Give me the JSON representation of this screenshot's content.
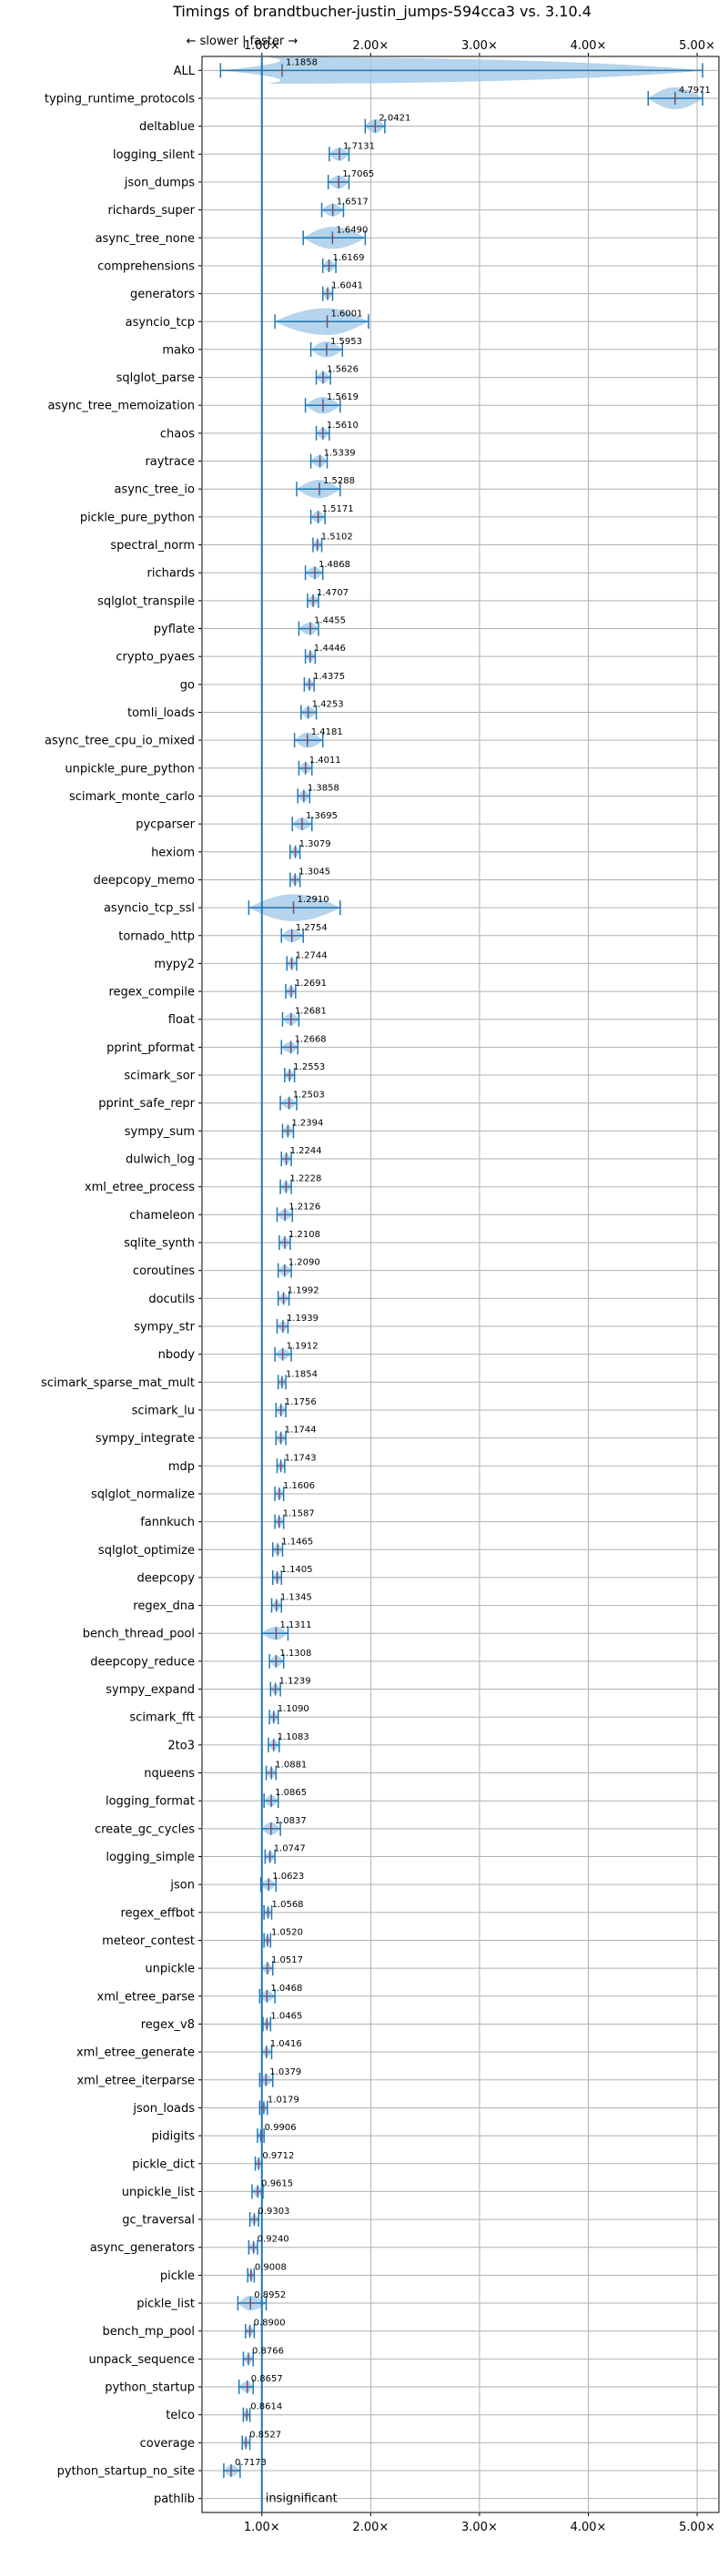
{
  "chart_data": {
    "type": "violin",
    "title": "Timings of brandtbucher-justin_jumps-594cca3 vs. 3.10.4",
    "direction_hint": "← slower | faster →",
    "xticks": [
      "1.00×",
      "2.00×",
      "3.00×",
      "4.00×",
      "5.00×"
    ],
    "xtick_values": [
      1,
      2,
      3,
      4,
      5
    ],
    "xlim": [
      0.45,
      5.2
    ],
    "reference_line": 1.0,
    "grid": true,
    "colors": {
      "violin": "#9ec5e4",
      "accent": "#1f77b4",
      "mean_marker": "#d62728"
    },
    "benchmarks": [
      {
        "name": "ALL",
        "value": 1.1858,
        "label": "1.1858",
        "min": 0.62,
        "max": 5.05,
        "spread": 0.35
      },
      {
        "name": "typing_runtime_protocols",
        "value": 4.7971,
        "label": "4.7971",
        "min": 4.55,
        "max": 5.05,
        "spread": 0.2
      },
      {
        "name": "deltablue",
        "value": 2.0421,
        "label": "2.0421",
        "min": 1.95,
        "max": 2.13,
        "spread": 0.09
      },
      {
        "name": "logging_silent",
        "value": 1.7131,
        "label": "1.7131",
        "min": 1.62,
        "max": 1.8,
        "spread": 0.08
      },
      {
        "name": "json_dumps",
        "value": 1.7065,
        "label": "1.7065",
        "min": 1.61,
        "max": 1.8,
        "spread": 0.08
      },
      {
        "name": "richards_super",
        "value": 1.6517,
        "label": "1.6517",
        "min": 1.55,
        "max": 1.75,
        "spread": 0.07
      },
      {
        "name": "async_tree_none",
        "value": 1.649,
        "label": "1.6490",
        "min": 1.38,
        "max": 1.95,
        "spread": 0.2
      },
      {
        "name": "comprehensions",
        "value": 1.6169,
        "label": "1.6169",
        "min": 1.56,
        "max": 1.68,
        "spread": 0.06
      },
      {
        "name": "generators",
        "value": 1.6041,
        "label": "1.6041",
        "min": 1.56,
        "max": 1.65,
        "spread": 0.05
      },
      {
        "name": "asyncio_tcp",
        "value": 1.6001,
        "label": "1.6001",
        "min": 1.12,
        "max": 1.98,
        "spread": 0.3
      },
      {
        "name": "mako",
        "value": 1.5953,
        "label": "1.5953",
        "min": 1.45,
        "max": 1.74,
        "spread": 0.12
      },
      {
        "name": "sqlglot_parse",
        "value": 1.5626,
        "label": "1.5626",
        "min": 1.5,
        "max": 1.63,
        "spread": 0.06
      },
      {
        "name": "async_tree_memoization",
        "value": 1.5619,
        "label": "1.5619",
        "min": 1.4,
        "max": 1.72,
        "spread": 0.13
      },
      {
        "name": "chaos",
        "value": 1.561,
        "label": "1.5610",
        "min": 1.5,
        "max": 1.62,
        "spread": 0.05
      },
      {
        "name": "raytrace",
        "value": 1.5339,
        "label": "1.5339",
        "min": 1.45,
        "max": 1.6,
        "spread": 0.06
      },
      {
        "name": "async_tree_io",
        "value": 1.5288,
        "label": "1.5288",
        "min": 1.32,
        "max": 1.72,
        "spread": 0.15
      },
      {
        "name": "pickle_pure_python",
        "value": 1.5171,
        "label": "1.5171",
        "min": 1.45,
        "max": 1.58,
        "spread": 0.05
      },
      {
        "name": "spectral_norm",
        "value": 1.5102,
        "label": "1.5102",
        "min": 1.47,
        "max": 1.55,
        "spread": 0.04
      },
      {
        "name": "richards",
        "value": 1.4868,
        "label": "1.4868",
        "min": 1.4,
        "max": 1.56,
        "spread": 0.06
      },
      {
        "name": "sqlglot_transpile",
        "value": 1.4707,
        "label": "1.4707",
        "min": 1.42,
        "max": 1.52,
        "spread": 0.05
      },
      {
        "name": "pyflate",
        "value": 1.4455,
        "label": "1.4455",
        "min": 1.34,
        "max": 1.52,
        "spread": 0.07
      },
      {
        "name": "crypto_pyaes",
        "value": 1.4446,
        "label": "1.4446",
        "min": 1.4,
        "max": 1.49,
        "spread": 0.04
      },
      {
        "name": "go",
        "value": 1.4375,
        "label": "1.4375",
        "min": 1.39,
        "max": 1.48,
        "spread": 0.04
      },
      {
        "name": "tomli_loads",
        "value": 1.4253,
        "label": "1.4253",
        "min": 1.36,
        "max": 1.5,
        "spread": 0.06
      },
      {
        "name": "async_tree_cpu_io_mixed",
        "value": 1.4181,
        "label": "1.4181",
        "min": 1.3,
        "max": 1.56,
        "spread": 0.11
      },
      {
        "name": "unpickle_pure_python",
        "value": 1.4011,
        "label": "1.4011",
        "min": 1.34,
        "max": 1.46,
        "spread": 0.05
      },
      {
        "name": "scimark_monte_carlo",
        "value": 1.3858,
        "label": "1.3858",
        "min": 1.33,
        "max": 1.44,
        "spread": 0.05
      },
      {
        "name": "pycparser",
        "value": 1.3695,
        "label": "1.3695",
        "min": 1.28,
        "max": 1.46,
        "spread": 0.07
      },
      {
        "name": "hexiom",
        "value": 1.3079,
        "label": "1.3079",
        "min": 1.26,
        "max": 1.35,
        "spread": 0.04
      },
      {
        "name": "deepcopy_memo",
        "value": 1.3045,
        "label": "1.3045",
        "min": 1.26,
        "max": 1.35,
        "spread": 0.04
      },
      {
        "name": "asyncio_tcp_ssl",
        "value": 1.291,
        "label": "1.2910",
        "min": 0.88,
        "max": 1.72,
        "spread": 0.3
      },
      {
        "name": "tornado_http",
        "value": 1.2754,
        "label": "1.2754",
        "min": 1.18,
        "max": 1.38,
        "spread": 0.08
      },
      {
        "name": "mypy2",
        "value": 1.2744,
        "label": "1.2744",
        "min": 1.23,
        "max": 1.32,
        "spread": 0.04
      },
      {
        "name": "regex_compile",
        "value": 1.2691,
        "label": "1.2691",
        "min": 1.22,
        "max": 1.31,
        "spread": 0.04
      },
      {
        "name": "float",
        "value": 1.2681,
        "label": "1.2681",
        "min": 1.19,
        "max": 1.34,
        "spread": 0.06
      },
      {
        "name": "pprint_pformat",
        "value": 1.2668,
        "label": "1.2668",
        "min": 1.18,
        "max": 1.33,
        "spread": 0.05
      },
      {
        "name": "scimark_sor",
        "value": 1.2553,
        "label": "1.2553",
        "min": 1.21,
        "max": 1.3,
        "spread": 0.04
      },
      {
        "name": "pprint_safe_repr",
        "value": 1.2503,
        "label": "1.2503",
        "min": 1.17,
        "max": 1.32,
        "spread": 0.05
      },
      {
        "name": "sympy_sum",
        "value": 1.2394,
        "label": "1.2394",
        "min": 1.19,
        "max": 1.29,
        "spread": 0.04
      },
      {
        "name": "dulwich_log",
        "value": 1.2244,
        "label": "1.2244",
        "min": 1.18,
        "max": 1.27,
        "spread": 0.04
      },
      {
        "name": "xml_etree_process",
        "value": 1.2228,
        "label": "1.2228",
        "min": 1.17,
        "max": 1.27,
        "spread": 0.04
      },
      {
        "name": "chameleon",
        "value": 1.2126,
        "label": "1.2126",
        "min": 1.14,
        "max": 1.28,
        "spread": 0.05
      },
      {
        "name": "sqlite_synth",
        "value": 1.2108,
        "label": "1.2108",
        "min": 1.16,
        "max": 1.26,
        "spread": 0.04
      },
      {
        "name": "coroutines",
        "value": 1.209,
        "label": "1.2090",
        "min": 1.15,
        "max": 1.27,
        "spread": 0.05
      },
      {
        "name": "docutils",
        "value": 1.1992,
        "label": "1.1992",
        "min": 1.15,
        "max": 1.25,
        "spread": 0.04
      },
      {
        "name": "sympy_str",
        "value": 1.1939,
        "label": "1.1939",
        "min": 1.14,
        "max": 1.24,
        "spread": 0.04
      },
      {
        "name": "nbody",
        "value": 1.1912,
        "label": "1.1912",
        "min": 1.12,
        "max": 1.27,
        "spread": 0.05
      },
      {
        "name": "scimark_sparse_mat_mult",
        "value": 1.1854,
        "label": "1.1854",
        "min": 1.15,
        "max": 1.22,
        "spread": 0.03
      },
      {
        "name": "scimark_lu",
        "value": 1.1756,
        "label": "1.1756",
        "min": 1.13,
        "max": 1.22,
        "spread": 0.04
      },
      {
        "name": "sympy_integrate",
        "value": 1.1744,
        "label": "1.1744",
        "min": 1.13,
        "max": 1.22,
        "spread": 0.04
      },
      {
        "name": "mdp",
        "value": 1.1743,
        "label": "1.1743",
        "min": 1.14,
        "max": 1.21,
        "spread": 0.03
      },
      {
        "name": "sqlglot_normalize",
        "value": 1.1606,
        "label": "1.1606",
        "min": 1.12,
        "max": 1.2,
        "spread": 0.04
      },
      {
        "name": "fannkuch",
        "value": 1.1587,
        "label": "1.1587",
        "min": 1.12,
        "max": 1.2,
        "spread": 0.04
      },
      {
        "name": "sqlglot_optimize",
        "value": 1.1465,
        "label": "1.1465",
        "min": 1.1,
        "max": 1.19,
        "spread": 0.04
      },
      {
        "name": "deepcopy",
        "value": 1.1405,
        "label": "1.1405",
        "min": 1.1,
        "max": 1.18,
        "spread": 0.04
      },
      {
        "name": "regex_dna",
        "value": 1.1345,
        "label": "1.1345",
        "min": 1.09,
        "max": 1.18,
        "spread": 0.04
      },
      {
        "name": "bench_thread_pool",
        "value": 1.1311,
        "label": "1.1311",
        "min": 1.0,
        "max": 1.24,
        "spread": 0.08
      },
      {
        "name": "deepcopy_reduce",
        "value": 1.1308,
        "label": "1.1308",
        "min": 1.07,
        "max": 1.2,
        "spread": 0.05
      },
      {
        "name": "sympy_expand",
        "value": 1.1239,
        "label": "1.1239",
        "min": 1.08,
        "max": 1.17,
        "spread": 0.04
      },
      {
        "name": "scimark_fft",
        "value": 1.109,
        "label": "1.1090",
        "min": 1.07,
        "max": 1.15,
        "spread": 0.04
      },
      {
        "name": "2to3",
        "value": 1.1083,
        "label": "1.1083",
        "min": 1.06,
        "max": 1.16,
        "spread": 0.04
      },
      {
        "name": "nqueens",
        "value": 1.0881,
        "label": "1.0881",
        "min": 1.04,
        "max": 1.13,
        "spread": 0.04
      },
      {
        "name": "logging_format",
        "value": 1.0865,
        "label": "1.0865",
        "min": 1.02,
        "max": 1.15,
        "spread": 0.05
      },
      {
        "name": "create_gc_cycles",
        "value": 1.0837,
        "label": "1.0837",
        "min": 1.0,
        "max": 1.17,
        "spread": 0.07
      },
      {
        "name": "logging_simple",
        "value": 1.0747,
        "label": "1.0747",
        "min": 1.03,
        "max": 1.12,
        "spread": 0.04
      },
      {
        "name": "json",
        "value": 1.0623,
        "label": "1.0623",
        "min": 0.99,
        "max": 1.13,
        "spread": 0.05
      },
      {
        "name": "regex_effbot",
        "value": 1.0568,
        "label": "1.0568",
        "min": 1.02,
        "max": 1.09,
        "spread": 0.03
      },
      {
        "name": "meteor_contest",
        "value": 1.052,
        "label": "1.0520",
        "min": 1.02,
        "max": 1.08,
        "spread": 0.03
      },
      {
        "name": "unpickle",
        "value": 1.0517,
        "label": "1.0517",
        "min": 1.0,
        "max": 1.1,
        "spread": 0.04
      },
      {
        "name": "xml_etree_parse",
        "value": 1.0468,
        "label": "1.0468",
        "min": 0.98,
        "max": 1.12,
        "spread": 0.05
      },
      {
        "name": "regex_v8",
        "value": 1.0465,
        "label": "1.0465",
        "min": 1.01,
        "max": 1.08,
        "spread": 0.03
      },
      {
        "name": "xml_etree_generate",
        "value": 1.0416,
        "label": "1.0416",
        "min": 1.0,
        "max": 1.09,
        "spread": 0.03
      },
      {
        "name": "xml_etree_iterparse",
        "value": 1.0379,
        "label": "1.0379",
        "min": 0.98,
        "max": 1.1,
        "spread": 0.05
      },
      {
        "name": "json_loads",
        "value": 1.0179,
        "label": "1.0179",
        "min": 0.98,
        "max": 1.05,
        "spread": 0.03
      },
      {
        "name": "pidigits",
        "value": 0.9906,
        "label": "0.9906",
        "min": 0.96,
        "max": 1.02,
        "spread": 0.03
      },
      {
        "name": "pickle_dict",
        "value": 0.9712,
        "label": "0.9712",
        "min": 0.94,
        "max": 1.0,
        "spread": 0.03
      },
      {
        "name": "unpickle_list",
        "value": 0.9615,
        "label": "0.9615",
        "min": 0.91,
        "max": 1.01,
        "spread": 0.04
      },
      {
        "name": "gc_traversal",
        "value": 0.9303,
        "label": "0.9303",
        "min": 0.89,
        "max": 0.97,
        "spread": 0.03
      },
      {
        "name": "async_generators",
        "value": 0.924,
        "label": "0.9240",
        "min": 0.88,
        "max": 0.96,
        "spread": 0.03
      },
      {
        "name": "pickle",
        "value": 0.9008,
        "label": "0.9008",
        "min": 0.87,
        "max": 0.93,
        "spread": 0.03
      },
      {
        "name": "pickle_list",
        "value": 0.8952,
        "label": "0.8952",
        "min": 0.78,
        "max": 1.04,
        "spread": 0.1
      },
      {
        "name": "bench_mp_pool",
        "value": 0.89,
        "label": "0.8900",
        "min": 0.85,
        "max": 0.93,
        "spread": 0.03
      },
      {
        "name": "unpack_sequence",
        "value": 0.8766,
        "label": "0.8766",
        "min": 0.83,
        "max": 0.92,
        "spread": 0.03
      },
      {
        "name": "python_startup",
        "value": 0.8657,
        "label": "0.8657",
        "min": 0.79,
        "max": 0.92,
        "spread": 0.05
      },
      {
        "name": "telco",
        "value": 0.8614,
        "label": "0.8614",
        "min": 0.83,
        "max": 0.89,
        "spread": 0.03
      },
      {
        "name": "coverage",
        "value": 0.8527,
        "label": "0.8527",
        "min": 0.82,
        "max": 0.89,
        "spread": 0.03
      },
      {
        "name": "python_startup_no_site",
        "value": 0.7173,
        "label": "0.7173",
        "min": 0.65,
        "max": 0.8,
        "spread": 0.06
      },
      {
        "name": "pathlib",
        "value": null,
        "label": "insignificant",
        "min": null,
        "max": null,
        "spread": 0
      }
    ]
  }
}
